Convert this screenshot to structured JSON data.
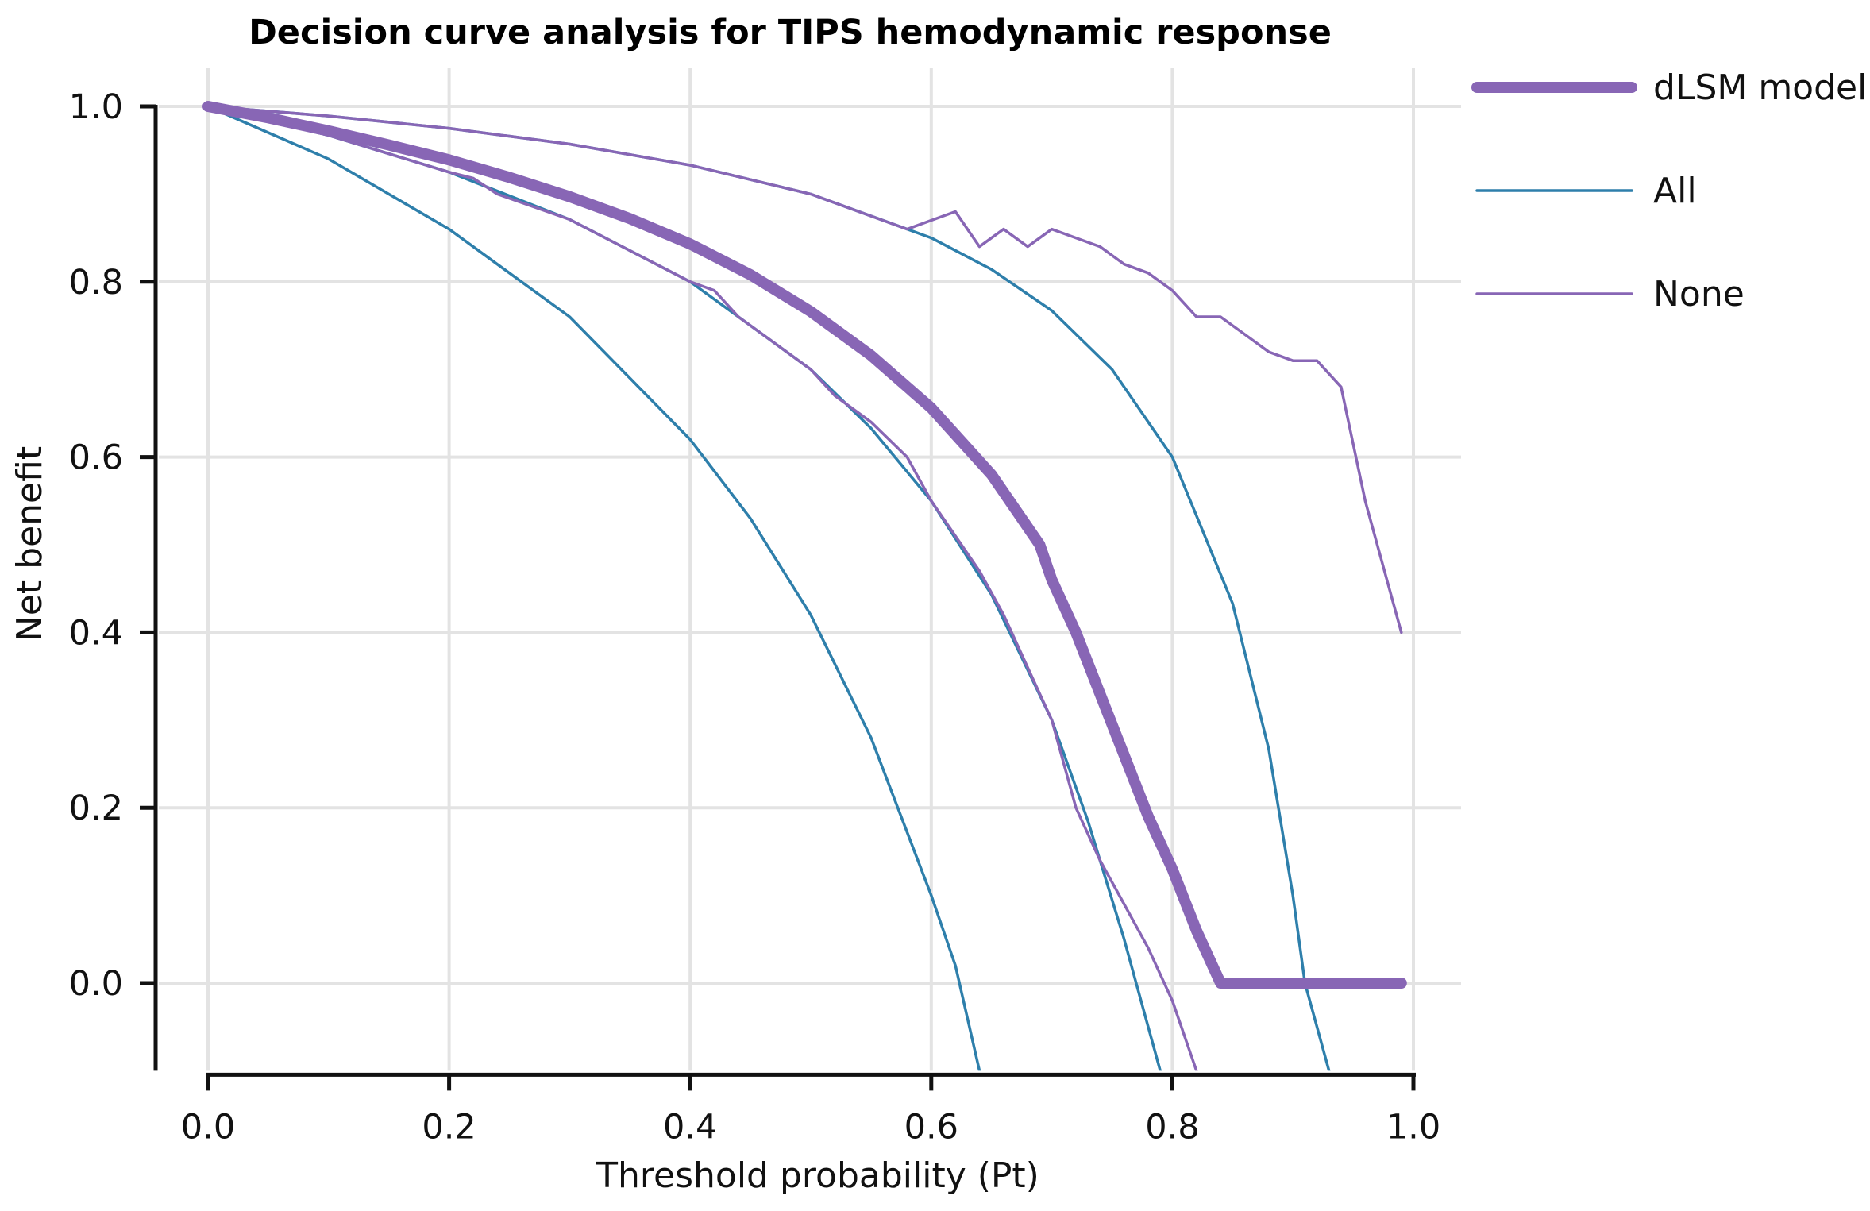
{
  "chart_data": {
    "type": "line",
    "title": "Decision curve analysis for TIPS hemodynamic response",
    "xlabel": "Threshold probability (Pt)",
    "ylabel": "Net benefit",
    "xlim": [
      0,
      1
    ],
    "ylim": [
      -0.1,
      1.0
    ],
    "x_ticks": [
      "0.0",
      "0.2",
      "0.4",
      "0.6",
      "0.8",
      "1.0"
    ],
    "y_ticks": [
      "0.0",
      "0.2",
      "0.4",
      "0.6",
      "0.8",
      "1.0"
    ],
    "grid": true,
    "legend_position": "top-right",
    "series": [
      {
        "name": "dLSM model",
        "color": "#8866b5",
        "style": "thick",
        "points": [
          [
            0.0,
            1.0
          ],
          [
            0.05,
            0.987
          ],
          [
            0.1,
            0.972
          ],
          [
            0.15,
            0.956
          ],
          [
            0.2,
            0.939
          ],
          [
            0.25,
            0.919
          ],
          [
            0.3,
            0.897
          ],
          [
            0.35,
            0.872
          ],
          [
            0.4,
            0.843
          ],
          [
            0.45,
            0.808
          ],
          [
            0.5,
            0.766
          ],
          [
            0.55,
            0.716
          ],
          [
            0.6,
            0.656
          ],
          [
            0.65,
            0.58
          ],
          [
            0.69,
            0.5
          ],
          [
            0.7,
            0.46
          ],
          [
            0.72,
            0.4
          ],
          [
            0.74,
            0.33
          ],
          [
            0.76,
            0.26
          ],
          [
            0.78,
            0.19
          ],
          [
            0.8,
            0.13
          ],
          [
            0.82,
            0.06
          ],
          [
            0.84,
            0.0
          ],
          [
            0.87,
            0.0
          ],
          [
            0.89,
            0.0
          ],
          [
            0.92,
            0.0
          ],
          [
            0.95,
            0.0
          ],
          [
            0.99,
            0.0
          ]
        ]
      },
      {
        "name": "All",
        "color": "#2e7fab",
        "style": "thin",
        "points": [
          [
            0.0,
            1.0
          ],
          [
            0.1,
            0.989
          ],
          [
            0.2,
            0.975
          ],
          [
            0.3,
            0.957
          ],
          [
            0.4,
            0.933
          ],
          [
            0.5,
            0.9
          ],
          [
            0.6,
            0.85
          ],
          [
            0.65,
            0.814
          ],
          [
            0.7,
            0.767
          ],
          [
            0.75,
            0.7
          ],
          [
            0.8,
            0.6
          ],
          [
            0.85,
            0.433
          ],
          [
            0.88,
            0.267
          ],
          [
            0.9,
            0.1
          ],
          [
            0.91,
            0.0
          ],
          [
            0.93,
            -0.1
          ]
        ]
      },
      {
        "name": "All",
        "color": "#2e7fab",
        "style": "thin",
        "points": [
          [
            0.0,
            1.0
          ],
          [
            0.1,
            0.967
          ],
          [
            0.2,
            0.925
          ],
          [
            0.3,
            0.871
          ],
          [
            0.4,
            0.8
          ],
          [
            0.5,
            0.7
          ],
          [
            0.55,
            0.633
          ],
          [
            0.6,
            0.55
          ],
          [
            0.65,
            0.443
          ],
          [
            0.7,
            0.3
          ],
          [
            0.73,
            0.185
          ],
          [
            0.76,
            0.05
          ],
          [
            0.78,
            -0.05
          ],
          [
            0.79,
            -0.1
          ]
        ]
      },
      {
        "name": "All",
        "color": "#2e7fab",
        "style": "thin",
        "points": [
          [
            0.0,
            1.0
          ],
          [
            0.1,
            0.94
          ],
          [
            0.2,
            0.86
          ],
          [
            0.3,
            0.76
          ],
          [
            0.4,
            0.62
          ],
          [
            0.45,
            0.53
          ],
          [
            0.5,
            0.42
          ],
          [
            0.55,
            0.28
          ],
          [
            0.6,
            0.1
          ],
          [
            0.62,
            0.02
          ],
          [
            0.64,
            -0.1
          ]
        ]
      },
      {
        "name": "None",
        "color": "#8866b5",
        "style": "thin",
        "points": [
          [
            0.0,
            1.0
          ],
          [
            0.1,
            0.989
          ],
          [
            0.2,
            0.975
          ],
          [
            0.3,
            0.957
          ],
          [
            0.4,
            0.933
          ],
          [
            0.5,
            0.9
          ],
          [
            0.58,
            0.86
          ],
          [
            0.6,
            0.87
          ],
          [
            0.62,
            0.88
          ],
          [
            0.64,
            0.84
          ],
          [
            0.66,
            0.86
          ],
          [
            0.68,
            0.84
          ],
          [
            0.7,
            0.86
          ],
          [
            0.72,
            0.85
          ],
          [
            0.74,
            0.84
          ],
          [
            0.76,
            0.82
          ],
          [
            0.78,
            0.81
          ],
          [
            0.8,
            0.79
          ],
          [
            0.82,
            0.76
          ],
          [
            0.84,
            0.76
          ],
          [
            0.86,
            0.74
          ],
          [
            0.88,
            0.72
          ],
          [
            0.9,
            0.71
          ],
          [
            0.92,
            0.71
          ],
          [
            0.94,
            0.68
          ],
          [
            0.96,
            0.55
          ],
          [
            0.98,
            0.45
          ],
          [
            0.99,
            0.4
          ]
        ]
      },
      {
        "name": "None",
        "color": "#8866b5",
        "style": "thin",
        "points": [
          [
            0.0,
            1.0
          ],
          [
            0.1,
            0.967
          ],
          [
            0.2,
            0.925
          ],
          [
            0.22,
            0.918
          ],
          [
            0.24,
            0.9
          ],
          [
            0.3,
            0.871
          ],
          [
            0.4,
            0.8
          ],
          [
            0.42,
            0.79
          ],
          [
            0.44,
            0.76
          ],
          [
            0.46,
            0.74
          ],
          [
            0.5,
            0.7
          ],
          [
            0.52,
            0.67
          ],
          [
            0.55,
            0.64
          ],
          [
            0.58,
            0.6
          ],
          [
            0.6,
            0.55
          ],
          [
            0.62,
            0.51
          ],
          [
            0.64,
            0.47
          ],
          [
            0.66,
            0.42
          ],
          [
            0.68,
            0.36
          ],
          [
            0.7,
            0.3
          ],
          [
            0.72,
            0.2
          ],
          [
            0.74,
            0.14
          ],
          [
            0.76,
            0.09
          ],
          [
            0.78,
            0.04
          ],
          [
            0.8,
            -0.02
          ],
          [
            0.82,
            -0.1
          ]
        ]
      }
    ]
  },
  "legend": {
    "items": [
      {
        "label": "dLSM model",
        "color": "#8866b5",
        "style": "thick"
      },
      {
        "label": "All",
        "color": "#2e7fab",
        "style": "thin"
      },
      {
        "label": "None",
        "color": "#8866b5",
        "style": "thin"
      }
    ]
  }
}
